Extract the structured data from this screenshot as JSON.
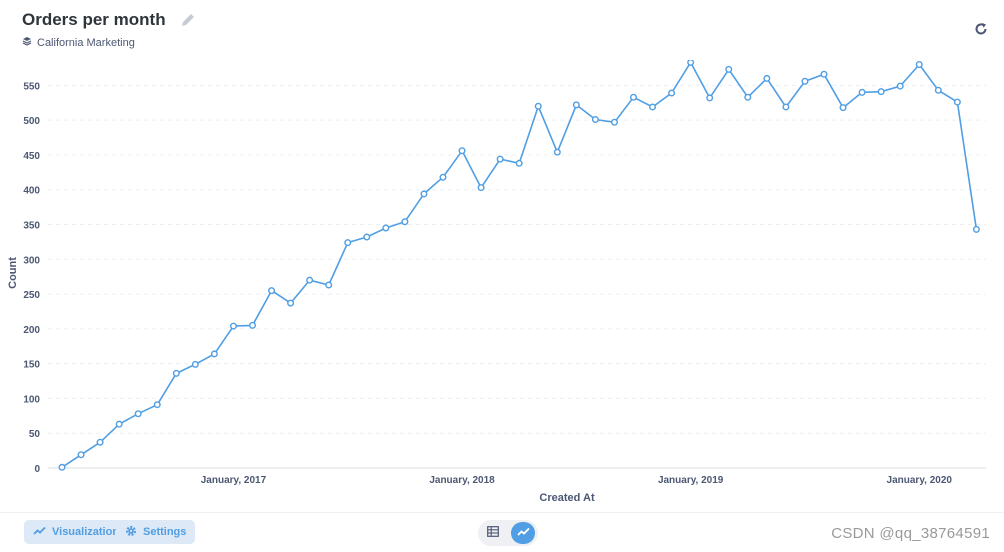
{
  "header": {
    "title": "Orders per month",
    "collection": "California Marketing"
  },
  "footer": {
    "visualization_label": "Visualization",
    "settings_label": "Settings",
    "watermark": "CSDN @qq_38764591"
  },
  "icons": {
    "edit": "pencil-icon",
    "collection": "layers-icon",
    "refresh": "refresh-icon",
    "visualization": "line-chart-icon",
    "settings": "gear-icon",
    "table_view": "table-icon",
    "chart_view": "line-chart-icon"
  },
  "colors": {
    "accent": "#509ee3",
    "line": "#509ee3",
    "grid": "#eceff2",
    "axis_text": "#949aab"
  },
  "chart_data": {
    "type": "line",
    "xlabel": "Created At",
    "ylabel": "Count",
    "ylim": [
      0,
      575
    ],
    "y_ticks": [
      0,
      50,
      100,
      150,
      200,
      250,
      300,
      350,
      400,
      450,
      500,
      550
    ],
    "x_ticks": [
      {
        "label": "January, 2017",
        "index": 9
      },
      {
        "label": "January, 2018",
        "index": 21
      },
      {
        "label": "January, 2019",
        "index": 33
      },
      {
        "label": "January, 2020",
        "index": 45
      }
    ],
    "grid": "horizontal-dashed",
    "series": [
      {
        "values": [
          1,
          19,
          37,
          63,
          78,
          91,
          136,
          149,
          164,
          204,
          205,
          255,
          237,
          270,
          263,
          324,
          332,
          345,
          354,
          394,
          418,
          456,
          403,
          444,
          438,
          520,
          454,
          522,
          501,
          497,
          533,
          519,
          539,
          583,
          532,
          573,
          533,
          560,
          519,
          556,
          566,
          518,
          540,
          541,
          549,
          580,
          543,
          526,
          343
        ]
      }
    ]
  }
}
